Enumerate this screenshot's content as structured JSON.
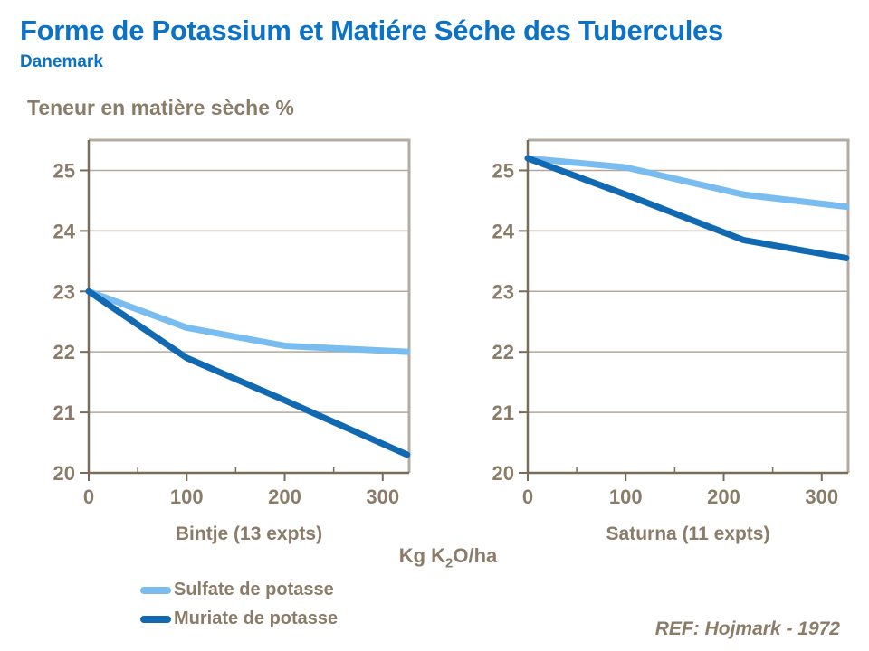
{
  "header": {
    "title": "Forme de Potassium et Matiére Séche des Tubercules",
    "subtitle": "Danemark"
  },
  "axis_titles": {
    "y": "Teneur en matière sèche %",
    "x_prefix": "Kg K",
    "x_sub": "2",
    "x_suffix": "O/ha"
  },
  "legend": {
    "items": [
      {
        "label": "Sulfate de potasse",
        "color": "#79bdf0"
      },
      {
        "label": "Muriate de potasse",
        "color": "#1169b2"
      }
    ]
  },
  "reference": "REF: Hojmark - 1972",
  "colors": {
    "title_blue": "#0b72c6",
    "taupe_text": "#8b7b69",
    "gridline": "#b3a89b",
    "axis": "#7a6c5b",
    "border": "#b4aba0",
    "sulfate_blue": "#79bdf0",
    "muriate_blue": "#1169b2"
  },
  "chart_data": [
    {
      "type": "line",
      "title": "Bintje (13 expts)",
      "xlabel": "Kg K2O/ha",
      "ylabel": "Teneur en matière sèche %",
      "xlim": [
        0,
        327
      ],
      "ylim": [
        20,
        25.5
      ],
      "x_ticks": [
        0,
        100,
        200,
        300
      ],
      "x_minor_ticks": [
        50,
        150,
        250
      ],
      "y_ticks": [
        20,
        21,
        22,
        23,
        24,
        25
      ],
      "grid": true,
      "legend_position": "below-left",
      "series": [
        {
          "name": "Sulfate de potasse",
          "color": "#79bdf0",
          "x": [
            0,
            100,
            200,
            325
          ],
          "y": [
            23.0,
            22.4,
            22.1,
            22.0
          ]
        },
        {
          "name": "Muriate de potasse",
          "color": "#1169b2",
          "x": [
            0,
            100,
            200,
            325
          ],
          "y": [
            23.0,
            21.9,
            21.2,
            20.3
          ]
        }
      ]
    },
    {
      "type": "line",
      "title": "Saturna (11 expts)",
      "xlabel": "Kg K2O/ha",
      "ylabel": "Teneur en matière sèche %",
      "xlim": [
        0,
        327
      ],
      "ylim": [
        20,
        25.5
      ],
      "x_ticks": [
        0,
        100,
        200,
        300
      ],
      "x_minor_ticks": [
        50,
        150,
        250
      ],
      "y_ticks": [
        20,
        21,
        22,
        23,
        24,
        25
      ],
      "grid": true,
      "legend_position": "shared",
      "series": [
        {
          "name": "Sulfate de potasse",
          "color": "#79bdf0",
          "x": [
            0,
            100,
            220,
            325
          ],
          "y": [
            25.2,
            25.05,
            24.6,
            24.4
          ]
        },
        {
          "name": "Muriate de potasse",
          "color": "#1169b2",
          "x": [
            0,
            100,
            220,
            325
          ],
          "y": [
            25.2,
            24.6,
            23.85,
            23.55
          ]
        }
      ]
    }
  ]
}
